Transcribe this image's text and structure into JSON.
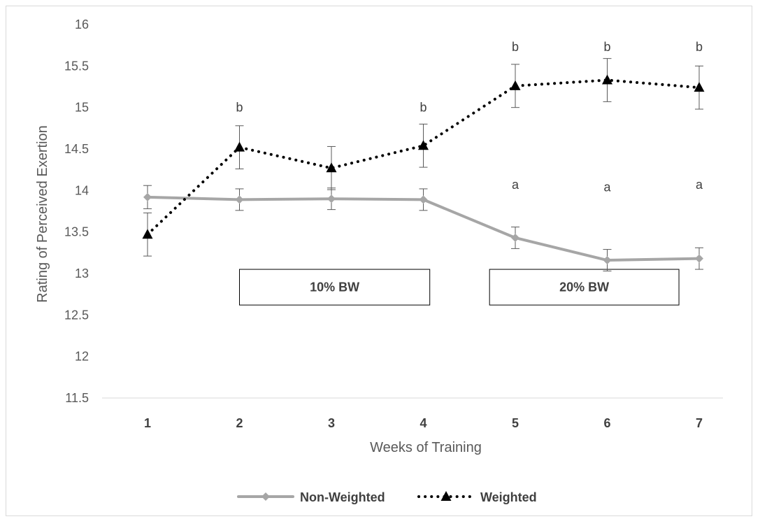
{
  "chart_data": {
    "type": "line",
    "title": "",
    "xlabel": "Weeks of Training",
    "ylabel": "Rating of Perceived  Exertion",
    "x": [
      1,
      2,
      3,
      4,
      5,
      6,
      7
    ],
    "x_tick_labels": [
      "1",
      "2",
      "3",
      "4",
      "5",
      "6",
      "7"
    ],
    "ylim": [
      11.5,
      16
    ],
    "y_ticks": [
      11.5,
      12,
      12.5,
      13,
      13.5,
      14,
      14.5,
      15,
      15.5,
      16
    ],
    "y_tick_labels": [
      "11.5",
      "12",
      "12.5",
      "13",
      "13.5",
      "14",
      "14.5",
      "15",
      "15.5",
      "16"
    ],
    "grid": false,
    "legend_position": "bottom",
    "series": [
      {
        "name": "Non-Weighted",
        "color": "#a6a6a6",
        "line_style": "solid",
        "marker": "diamond",
        "values": [
          13.92,
          13.89,
          13.9,
          13.89,
          13.43,
          13.16,
          13.18
        ],
        "error": [
          0.14,
          0.13,
          0.13,
          0.13,
          0.13,
          0.13,
          0.13
        ]
      },
      {
        "name": "Weighted",
        "color": "#000000",
        "line_style": "dotted",
        "marker": "triangle",
        "values": [
          13.47,
          14.52,
          14.27,
          14.54,
          15.26,
          15.33,
          15.24
        ],
        "error": [
          0.26,
          0.26,
          0.26,
          0.26,
          0.26,
          0.26,
          0.26
        ]
      }
    ],
    "annotations": [
      {
        "text": "b",
        "x": 2,
        "y": 15.0
      },
      {
        "text": "b",
        "x": 4,
        "y": 15.0
      },
      {
        "text": "b",
        "x": 5,
        "y": 15.73
      },
      {
        "text": "b",
        "x": 6,
        "y": 15.73
      },
      {
        "text": "b",
        "x": 7,
        "y": 15.73
      },
      {
        "text": "a",
        "x": 5,
        "y": 14.07
      },
      {
        "text": "a",
        "x": 6,
        "y": 14.04
      },
      {
        "text": "a",
        "x": 7,
        "y": 14.07
      }
    ],
    "boxes": [
      {
        "label": "10% BW",
        "x_from": 2.0,
        "x_to": 4.07,
        "y_from": 12.62,
        "y_to": 13.05
      },
      {
        "label": "20% BW",
        "x_from": 4.72,
        "x_to": 6.78,
        "y_from": 12.62,
        "y_to": 13.05
      }
    ]
  }
}
